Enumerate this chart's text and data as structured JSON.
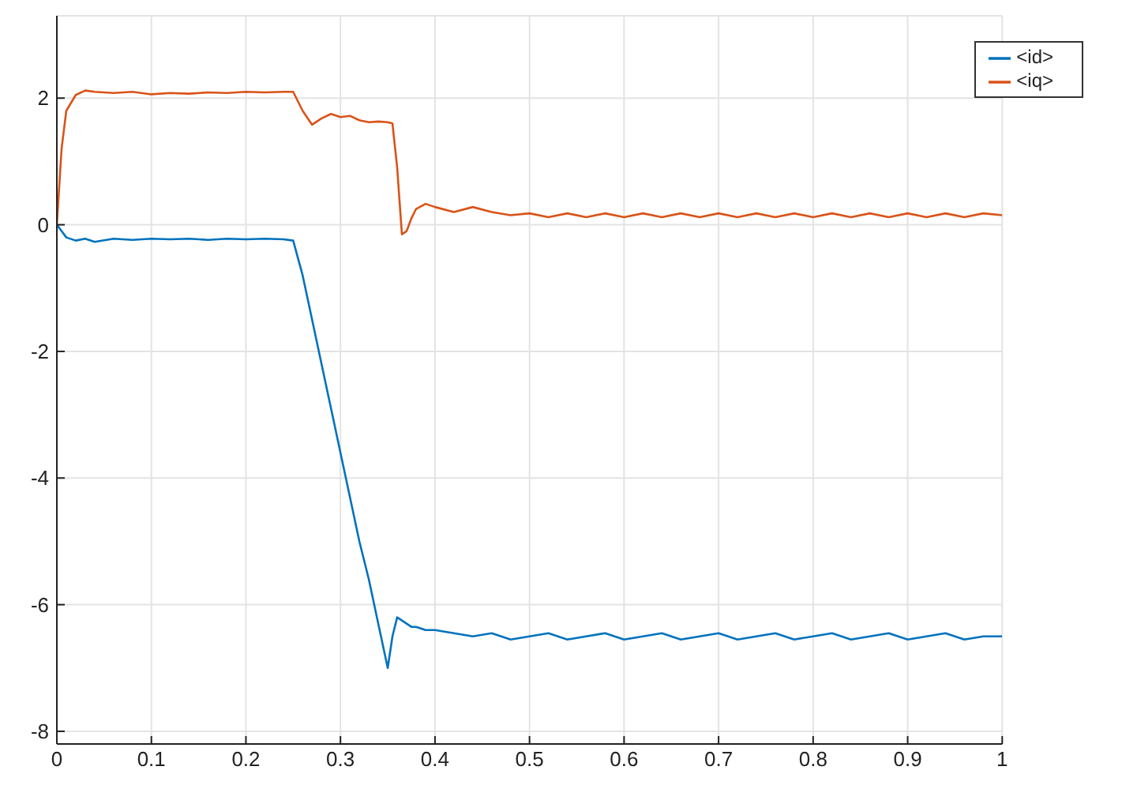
{
  "chart_data": {
    "type": "line",
    "x": [
      0,
      0.005,
      0.01,
      0.02,
      0.03,
      0.04,
      0.06,
      0.08,
      0.1,
      0.12,
      0.14,
      0.16,
      0.18,
      0.2,
      0.22,
      0.24,
      0.25,
      0.26,
      0.27,
      0.28,
      0.29,
      0.3,
      0.31,
      0.32,
      0.33,
      0.34,
      0.35,
      0.355,
      0.36,
      0.365,
      0.37,
      0.375,
      0.38,
      0.39,
      0.4,
      0.42,
      0.44,
      0.46,
      0.48,
      0.5,
      0.52,
      0.54,
      0.56,
      0.58,
      0.6,
      0.62,
      0.64,
      0.66,
      0.68,
      0.7,
      0.72,
      0.74,
      0.76,
      0.78,
      0.8,
      0.82,
      0.84,
      0.86,
      0.88,
      0.9,
      0.92,
      0.94,
      0.96,
      0.98,
      1.0
    ],
    "series": [
      {
        "name": "<id>",
        "color": "#0072bd",
        "values": [
          0,
          -0.1,
          -0.2,
          -0.25,
          -0.22,
          -0.27,
          -0.22,
          -0.24,
          -0.22,
          -0.23,
          -0.22,
          -0.24,
          -0.22,
          -0.23,
          -0.22,
          -0.23,
          -0.25,
          -0.8,
          -1.5,
          -2.2,
          -2.9,
          -3.6,
          -4.3,
          -5.0,
          -5.6,
          -6.3,
          -7.0,
          -6.5,
          -6.2,
          -6.25,
          -6.3,
          -6.35,
          -6.35,
          -6.4,
          -6.4,
          -6.45,
          -6.5,
          -6.45,
          -6.55,
          -6.5,
          -6.45,
          -6.55,
          -6.5,
          -6.45,
          -6.55,
          -6.5,
          -6.45,
          -6.55,
          -6.5,
          -6.45,
          -6.55,
          -6.5,
          -6.45,
          -6.55,
          -6.5,
          -6.45,
          -6.55,
          -6.5,
          -6.45,
          -6.55,
          -6.5,
          -6.45,
          -6.55,
          -6.5,
          -6.5
        ]
      },
      {
        "name": "<iq>",
        "color": "#d95319",
        "values": [
          0,
          1.2,
          1.8,
          2.05,
          2.12,
          2.1,
          2.08,
          2.1,
          2.06,
          2.08,
          2.07,
          2.09,
          2.08,
          2.1,
          2.09,
          2.1,
          2.1,
          1.8,
          1.58,
          1.68,
          1.75,
          1.7,
          1.72,
          1.65,
          1.62,
          1.63,
          1.62,
          1.6,
          0.9,
          -0.15,
          -0.1,
          0.1,
          0.25,
          0.33,
          0.28,
          0.2,
          0.28,
          0.2,
          0.15,
          0.18,
          0.12,
          0.18,
          0.12,
          0.18,
          0.12,
          0.18,
          0.12,
          0.18,
          0.12,
          0.18,
          0.12,
          0.18,
          0.12,
          0.18,
          0.12,
          0.18,
          0.12,
          0.18,
          0.12,
          0.18,
          0.12,
          0.18,
          0.12,
          0.18,
          0.15
        ]
      }
    ],
    "xlim": [
      0,
      1
    ],
    "xticks": [
      0,
      0.1,
      0.2,
      0.3,
      0.4,
      0.5,
      0.6,
      0.7,
      0.8,
      0.9,
      1
    ],
    "ylim": [
      -8.2,
      3.3
    ],
    "yticks": [
      -8,
      -6,
      -4,
      -2,
      0,
      2
    ],
    "grid": true,
    "legend": "top right",
    "marker": "none",
    "line_style": "solid"
  }
}
